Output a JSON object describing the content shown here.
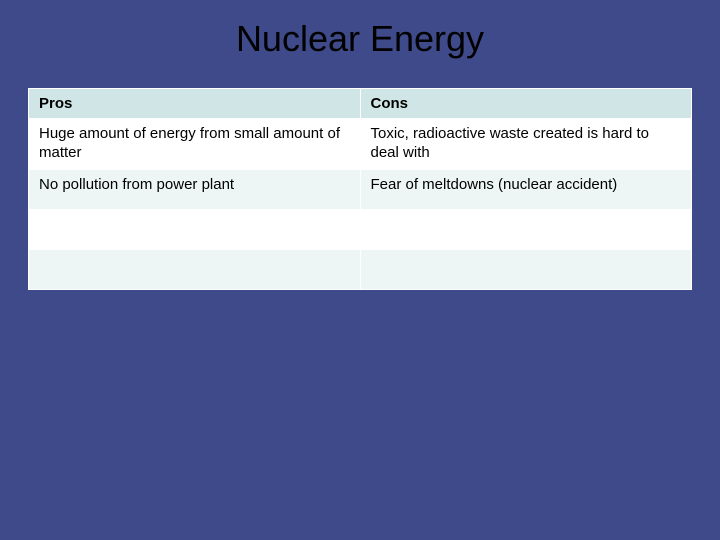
{
  "slide": {
    "title": "Nuclear Energy",
    "background_color": "#3e4a89",
    "title_color": "#000000",
    "title_fontsize": 36
  },
  "table": {
    "type": "table",
    "columns": [
      "Pros",
      "Cons"
    ],
    "header_bg": "#d0e5e5",
    "row_odd_bg": "#ffffff",
    "row_even_bg": "#eef5f5",
    "border_color": "#ffffff",
    "cell_fontsize": 15,
    "text_color": "#000000",
    "rows": [
      [
        "Huge amount of energy from small amount of matter",
        "Toxic, radioactive waste created is hard to deal with"
      ],
      [
        "No pollution from power plant",
        "Fear of meltdowns (nuclear accident)"
      ],
      [
        "",
        ""
      ],
      [
        "",
        ""
      ]
    ]
  }
}
